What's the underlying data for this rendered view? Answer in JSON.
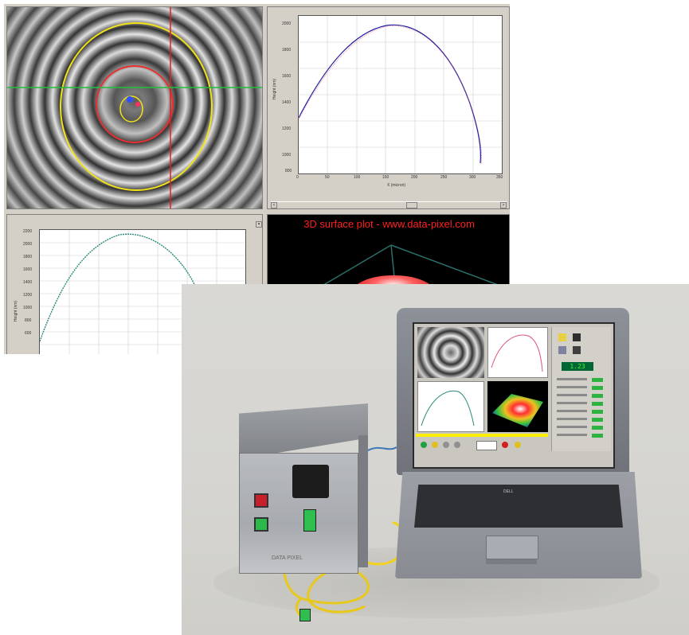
{
  "software": {
    "profile_chart": {
      "y_ticks": [
        "2000",
        "1800",
        "1600",
        "1400",
        "1200",
        "1000",
        "800"
      ],
      "x_ticks": [
        "0",
        "50",
        "100",
        "150",
        "200",
        "250",
        "300",
        "350"
      ],
      "ylabel": "Height (nm)",
      "xlabel": "X (micron)"
    },
    "profile2_chart": {
      "y_ticks": [
        "2200",
        "2000",
        "1800",
        "1600",
        "1400",
        "1200",
        "1000",
        "800",
        "600"
      ],
      "ylabel": "Height (nm)"
    },
    "surface_plot_title": "3D surface plot - www.data-pixel.com"
  },
  "photo": {
    "laptop_lcd_value": "1.23",
    "box_label": "DATA PIXEL",
    "laptop_brand": "DELL"
  },
  "colors": {
    "ring_red": "#e83030",
    "ring_yellow": "#f2e21a",
    "crosshair_vertical": "#e02020",
    "crosshair_horizontal": "#20c040",
    "profile_line": "#2020a0",
    "profile2_line": "#2a8a7a",
    "surface_title": "#ff2020",
    "fiber_cable": "#f2d21a",
    "status_led": "#2db33f"
  },
  "icons": [
    "scroll-left-icon",
    "scroll-right-icon",
    "close-icon"
  ]
}
